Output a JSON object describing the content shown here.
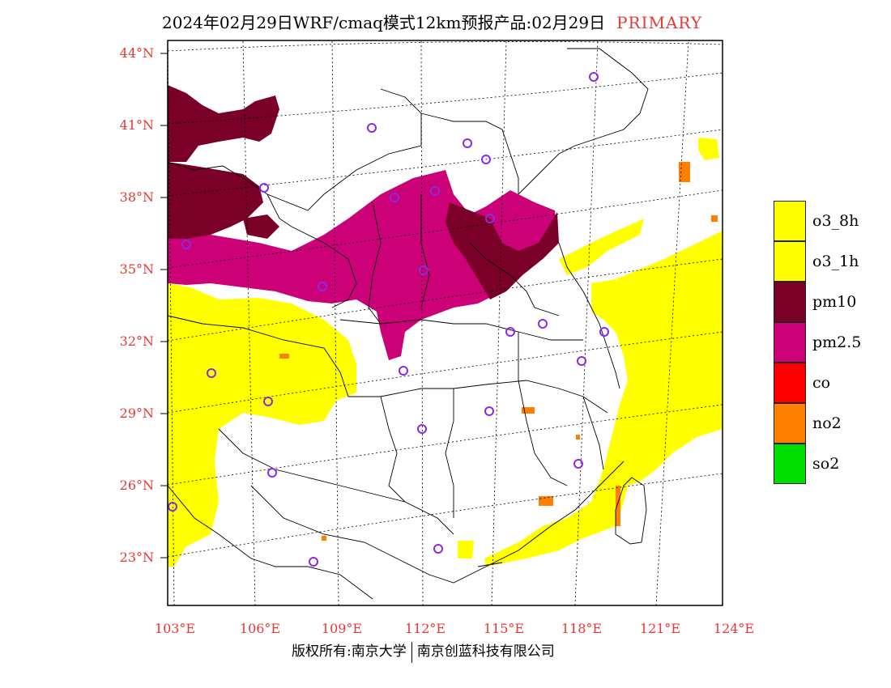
{
  "title": {
    "main": "2024年02月29日WRF/cmaq模式12km预报产品:02月29日",
    "tag": "PRIMARY"
  },
  "map": {
    "lat_labels": [
      "44°N",
      "41°N",
      "38°N",
      "35°N",
      "32°N",
      "29°N",
      "26°N",
      "23°N"
    ],
    "lon_labels": [
      "103°E",
      "106°E",
      "109°E",
      "112°E",
      "115°E",
      "118°E",
      "121°E",
      "124°E"
    ],
    "colors": {
      "o3_8h": "#ffff00",
      "o3_1h": "#ffff00",
      "pm10": "#7b0027",
      "pm2_5": "#cc0077",
      "co": "#ff0000",
      "no2": "#ff7f00",
      "so2": "#00dd00",
      "station": "#8a2be2",
      "label": "#e53935"
    }
  },
  "legend": {
    "items": [
      {
        "label": "o3_8h",
        "color": "#ffff00"
      },
      {
        "label": "o3_1h",
        "color": "#ffff00"
      },
      {
        "label": "pm10",
        "color": "#7b0027"
      },
      {
        "label": "pm2.5",
        "color": "#cc0077"
      },
      {
        "label": "co",
        "color": "#ff0000"
      },
      {
        "label": "no2",
        "color": "#ff7f00"
      },
      {
        "label": "so2",
        "color": "#00dd00"
      }
    ]
  },
  "footer": {
    "left": "版权所有:南京大学",
    "right": "南京创蓝科技有限公司"
  }
}
